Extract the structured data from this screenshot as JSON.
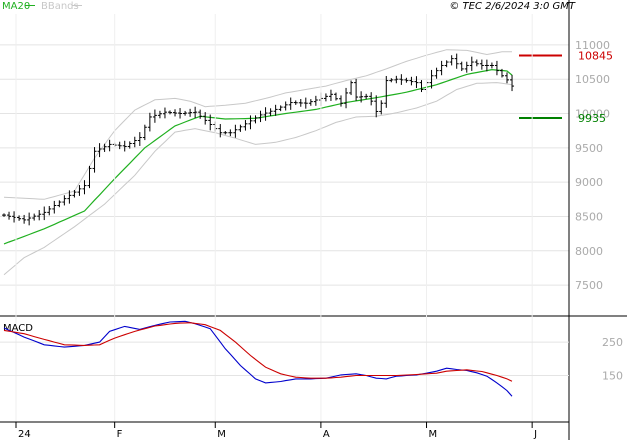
{
  "header": {
    "legend": [
      {
        "name": "MA20",
        "color": "#20b020"
      },
      {
        "name": "BBands",
        "color": "#c8c8c8"
      }
    ],
    "source": "© TEC 2/6/2024 3:0 GMT"
  },
  "chart_data": [
    {
      "type": "ohlc",
      "y_ticks": [
        7500,
        8000,
        8500,
        9000,
        9500,
        10000,
        10500,
        11000
      ],
      "y_tick_labels": [
        "7500",
        "8000",
        "8500",
        "9000",
        "9500",
        "10000",
        "10500",
        "11000"
      ],
      "ylim": [
        7050,
        11450
      ],
      "x_ticks": [
        {
          "label": "24",
          "index": 0
        },
        {
          "label": "F",
          "index": 22
        },
        {
          "label": "M",
          "index": 42
        },
        {
          "label": "A",
          "index": 63
        },
        {
          "label": "M",
          "index": 84
        },
        {
          "label": "J",
          "index": 105
        }
      ],
      "levels": [
        {
          "value": 10845,
          "label": "10845",
          "color": "#cc0000",
          "name": "resistance"
        },
        {
          "value": 9935,
          "label": "9935",
          "color": "#008000",
          "name": "support"
        }
      ],
      "bar_color": "#000000",
      "ma20_color": "#20b020",
      "bbands_color": "#c8c8c8",
      "anchors": {
        "close": [
          [
            0,
            8520
          ],
          [
            4,
            8450
          ],
          [
            8,
            8560
          ],
          [
            12,
            8760
          ],
          [
            16,
            8950
          ],
          [
            18,
            9450
          ],
          [
            21,
            9550
          ],
          [
            24,
            9520
          ],
          [
            27,
            9650
          ],
          [
            29,
            9950
          ],
          [
            32,
            10020
          ],
          [
            35,
            10000
          ],
          [
            38,
            10020
          ],
          [
            40,
            9900
          ],
          [
            43,
            9720
          ],
          [
            45,
            9720
          ],
          [
            48,
            9850
          ],
          [
            51,
            9980
          ],
          [
            54,
            10060
          ],
          [
            57,
            10160
          ],
          [
            60,
            10150
          ],
          [
            63,
            10220
          ],
          [
            65,
            10280
          ],
          [
            67,
            10150
          ],
          [
            69,
            10450
          ],
          [
            70,
            10240
          ],
          [
            72,
            10250
          ],
          [
            73,
            10180
          ],
          [
            74,
            10030
          ],
          [
            75,
            10150
          ],
          [
            76,
            10480
          ],
          [
            78,
            10500
          ],
          [
            80,
            10480
          ],
          [
            82,
            10450
          ],
          [
            83,
            10350
          ],
          [
            85,
            10550
          ],
          [
            87,
            10700
          ],
          [
            89,
            10800
          ],
          [
            91,
            10650
          ],
          [
            93,
            10750
          ],
          [
            95,
            10700
          ],
          [
            97,
            10700
          ],
          [
            99,
            10550
          ],
          [
            100,
            10490
          ],
          [
            101,
            10400
          ]
        ],
        "ma20": [
          [
            0,
            8100
          ],
          [
            8,
            8320
          ],
          [
            16,
            8580
          ],
          [
            22,
            9050
          ],
          [
            28,
            9500
          ],
          [
            34,
            9820
          ],
          [
            39,
            9960
          ],
          [
            44,
            9920
          ],
          [
            50,
            9930
          ],
          [
            56,
            10000
          ],
          [
            62,
            10060
          ],
          [
            68,
            10160
          ],
          [
            74,
            10230
          ],
          [
            80,
            10310
          ],
          [
            86,
            10420
          ],
          [
            92,
            10570
          ],
          [
            97,
            10640
          ],
          [
            100,
            10620
          ],
          [
            101,
            10560
          ]
        ],
        "bb_upper": [
          [
            0,
            8780
          ],
          [
            8,
            8750
          ],
          [
            14,
            8870
          ],
          [
            18,
            9350
          ],
          [
            22,
            9750
          ],
          [
            26,
            10050
          ],
          [
            30,
            10200
          ],
          [
            34,
            10220
          ],
          [
            37,
            10180
          ],
          [
            40,
            10100
          ],
          [
            44,
            10120
          ],
          [
            48,
            10150
          ],
          [
            52,
            10220
          ],
          [
            56,
            10300
          ],
          [
            60,
            10350
          ],
          [
            64,
            10400
          ],
          [
            68,
            10480
          ],
          [
            72,
            10550
          ],
          [
            76,
            10650
          ],
          [
            80,
            10760
          ],
          [
            84,
            10850
          ],
          [
            88,
            10930
          ],
          [
            92,
            10920
          ],
          [
            96,
            10860
          ],
          [
            99,
            10900
          ],
          [
            101,
            10900
          ]
        ],
        "bb_lower": [
          [
            0,
            7650
          ],
          [
            4,
            7900
          ],
          [
            8,
            8050
          ],
          [
            14,
            8350
          ],
          [
            20,
            8680
          ],
          [
            26,
            9100
          ],
          [
            30,
            9450
          ],
          [
            34,
            9730
          ],
          [
            38,
            9780
          ],
          [
            42,
            9720
          ],
          [
            46,
            9640
          ],
          [
            50,
            9550
          ],
          [
            54,
            9580
          ],
          [
            58,
            9650
          ],
          [
            62,
            9750
          ],
          [
            66,
            9870
          ],
          [
            70,
            9950
          ],
          [
            74,
            9960
          ],
          [
            78,
            10010
          ],
          [
            82,
            10080
          ],
          [
            86,
            10180
          ],
          [
            90,
            10350
          ],
          [
            94,
            10440
          ],
          [
            98,
            10450
          ],
          [
            101,
            10420
          ]
        ]
      }
    },
    {
      "type": "line",
      "title": "MACD",
      "y_ticks": [
        150,
        250
      ],
      "y_tick_labels": [
        "150",
        "250"
      ],
      "ylim": [
        17,
        322
      ],
      "series": [
        {
          "color": "#0000cc",
          "points": [
            [
              0,
              292
            ],
            [
              4,
              265
            ],
            [
              8,
              242
            ],
            [
              12,
              235
            ],
            [
              16,
              240
            ],
            [
              19,
              250
            ],
            [
              21,
              282
            ],
            [
              24,
              297
            ],
            [
              27,
              288
            ],
            [
              30,
              300
            ],
            [
              33,
              310
            ],
            [
              36,
              312
            ],
            [
              38,
              305
            ],
            [
              41,
              290
            ],
            [
              44,
              230
            ],
            [
              47,
              180
            ],
            [
              50,
              140
            ],
            [
              52,
              128
            ],
            [
              55,
              132
            ],
            [
              58,
              140
            ],
            [
              61,
              140
            ],
            [
              64,
              142
            ],
            [
              67,
              152
            ],
            [
              70,
              155
            ],
            [
              72,
              150
            ],
            [
              74,
              142
            ],
            [
              76,
              140
            ],
            [
              78,
              148
            ],
            [
              80,
              150
            ],
            [
              82,
              152
            ],
            [
              84,
              157
            ],
            [
              86,
              163
            ],
            [
              88,
              172
            ],
            [
              90,
              168
            ],
            [
              92,
              165
            ],
            [
              94,
              158
            ],
            [
              96,
              148
            ],
            [
              98,
              128
            ],
            [
              100,
              105
            ],
            [
              101,
              88
            ]
          ]
        },
        {
          "color": "#cc0000",
          "points": [
            [
              0,
              285
            ],
            [
              4,
              275
            ],
            [
              8,
              258
            ],
            [
              12,
              242
            ],
            [
              16,
              240
            ],
            [
              19,
              242
            ],
            [
              22,
              262
            ],
            [
              26,
              282
            ],
            [
              30,
              298
            ],
            [
              34,
              306
            ],
            [
              37,
              308
            ],
            [
              40,
              302
            ],
            [
              43,
              285
            ],
            [
              46,
              250
            ],
            [
              49,
              210
            ],
            [
              52,
              175
            ],
            [
              55,
              155
            ],
            [
              58,
              145
            ],
            [
              61,
              142
            ],
            [
              64,
              142
            ],
            [
              67,
              145
            ],
            [
              70,
              150
            ],
            [
              74,
              150
            ],
            [
              78,
              150
            ],
            [
              82,
              153
            ],
            [
              86,
              157
            ],
            [
              88,
              163
            ],
            [
              92,
              167
            ],
            [
              95,
              162
            ],
            [
              98,
              150
            ],
            [
              100,
              140
            ],
            [
              101,
              133
            ]
          ]
        }
      ]
    }
  ]
}
